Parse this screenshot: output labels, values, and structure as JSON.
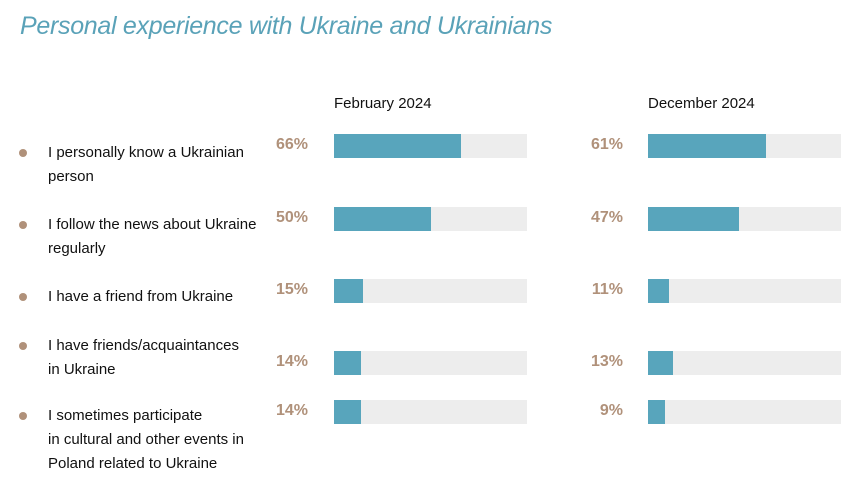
{
  "chart_data": {
    "type": "bar",
    "orientation": "horizontal",
    "title": "Personal experience with Ukraine and Ukrainians",
    "xlim": [
      0,
      100
    ],
    "unit": "%",
    "categories": [
      "I personally know a Ukrainian person",
      "I follow the news about Ukraine regularly",
      "I have a friend from Ukraine",
      "I have friends/acquaintances in Ukraine",
      "I sometimes participate in cultural and other events in Poland related to Ukraine"
    ],
    "label_lines": [
      [
        "I personally know a Ukrainian",
        "person"
      ],
      [
        "I follow the news about Ukraine",
        "regularly"
      ],
      [
        "I have a friend from Ukraine"
      ],
      [
        "I have friends/acquaintances",
        "in Ukraine"
      ],
      [
        "I sometimes participate",
        "in cultural and other events in",
        "Poland related to Ukraine"
      ]
    ],
    "series": [
      {
        "name": "February 2024",
        "values": [
          66,
          50,
          15,
          14,
          14
        ]
      },
      {
        "name": "December 2024",
        "values": [
          61,
          47,
          11,
          13,
          9
        ]
      }
    ],
    "colors": {
      "bar": "#58a5bc",
      "track": "#ededed",
      "value_label": "#b0917a",
      "bullet": "#b0917a",
      "title": "#5aa2b8"
    }
  }
}
